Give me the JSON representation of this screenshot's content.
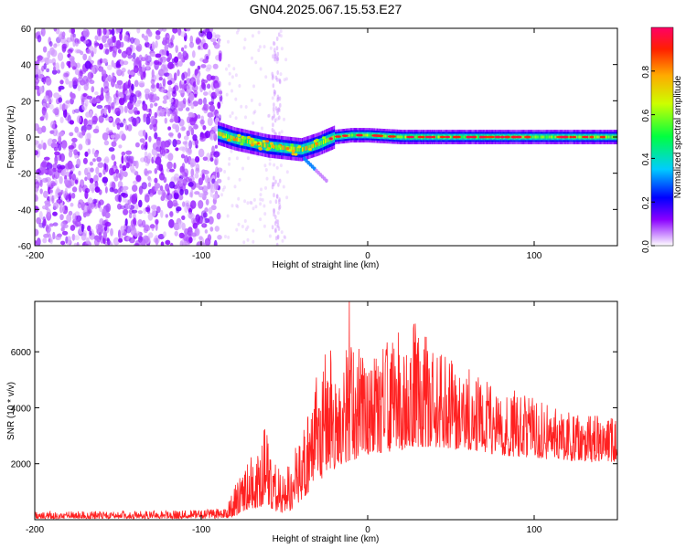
{
  "chart_data": [
    {
      "type": "heatmap",
      "title": "GN04.2025.067.15.53.E27",
      "xlabel": "Height of straight line (km)",
      "ylabel": "Frequency (Hz)",
      "xlim": [
        -200,
        150
      ],
      "ylim": [
        -60,
        60
      ],
      "xticks": [
        -200,
        -100,
        0,
        100
      ],
      "yticks": [
        -60,
        -40,
        -20,
        0,
        20,
        40,
        60
      ],
      "colorbar": {
        "label": "Normalized spectral amplitude",
        "range": [
          0,
          1
        ],
        "ticks": [
          0.0,
          0.2,
          0.4,
          0.6,
          0.8
        ]
      },
      "features": {
        "noise_region_x": [
          -200,
          -88
        ],
        "signal_track": {
          "x": [
            -90,
            -80,
            -70,
            -60,
            -50,
            -40,
            -30,
            -20,
            -10,
            0,
            20,
            40,
            60,
            80,
            100,
            120,
            150
          ],
          "y": [
            2,
            -1,
            -3,
            -5,
            -6,
            -7,
            -4,
            0,
            1,
            1,
            0,
            0,
            0,
            0,
            0,
            0,
            0
          ]
        },
        "faint_column_x": -55
      }
    },
    {
      "type": "line",
      "xlabel": "Height of straight line (km)",
      "ylabel": "SNR (10 * v/v)",
      "xlim": [
        -200,
        150
      ],
      "ylim": [
        0,
        7800
      ],
      "xticks": [
        -200,
        -100,
        0,
        100
      ],
      "yticks": [
        2000,
        4000,
        6000
      ],
      "line_color": "#ff0000",
      "envelope": {
        "x": [
          -200,
          -150,
          -100,
          -85,
          -80,
          -75,
          -70,
          -60,
          -55,
          -50,
          -45,
          -40,
          -35,
          -30,
          -25,
          -20,
          -15,
          -10,
          -5,
          0,
          10,
          20,
          30,
          40,
          50,
          60,
          80,
          100,
          120,
          150
        ],
        "low": [
          30,
          40,
          40,
          50,
          100,
          300,
          400,
          500,
          300,
          200,
          400,
          700,
          1000,
          1300,
          1500,
          1800,
          2000,
          2100,
          2200,
          2300,
          2400,
          2500,
          2600,
          2600,
          2500,
          2500,
          2300,
          2200,
          2100,
          2000
        ],
        "high": [
          300,
          300,
          350,
          400,
          1200,
          1800,
          2500,
          3500,
          2000,
          1500,
          2500,
          3000,
          4000,
          5500,
          6300,
          6000,
          5800,
          6500,
          6400,
          6200,
          6300,
          7200,
          7000,
          6300,
          5800,
          5400,
          4800,
          4400,
          3900,
          3600
        ]
      },
      "peak": {
        "x": -11,
        "y": 7800
      }
    }
  ]
}
